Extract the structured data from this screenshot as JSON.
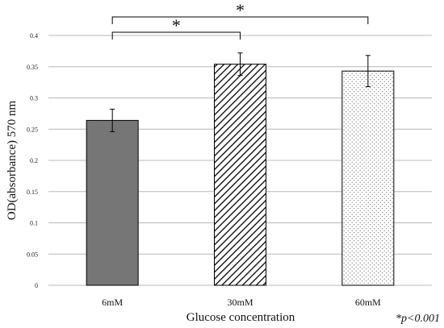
{
  "chart_data": {
    "type": "bar",
    "title": "",
    "xlabel": "Glucose concentration",
    "ylabel": "OD(absorbance) 570 nm",
    "categories": [
      "6mM",
      "30mM",
      "60mM"
    ],
    "values": [
      0.264,
      0.354,
      0.343
    ],
    "errors": [
      0.018,
      0.018,
      0.025
    ],
    "bar_fills": [
      "solid-gray",
      "diagonal-hatch",
      "dots"
    ],
    "ylim": [
      0,
      0.4
    ],
    "yticks": [
      "0",
      "0.05",
      "0.1",
      "0.15",
      "0.2",
      "0.25",
      "0.3",
      "0.35",
      "0.4"
    ],
    "grid": true,
    "significance": [
      {
        "from": "6mM",
        "to": "30mM",
        "label": "*"
      },
      {
        "from": "6mM",
        "to": "60mM",
        "label": "*"
      }
    ],
    "note": "*p<0.001",
    "colors": {
      "solid_bar": "#767676",
      "grid": "#b8b8b8",
      "outline": "#000000"
    }
  }
}
